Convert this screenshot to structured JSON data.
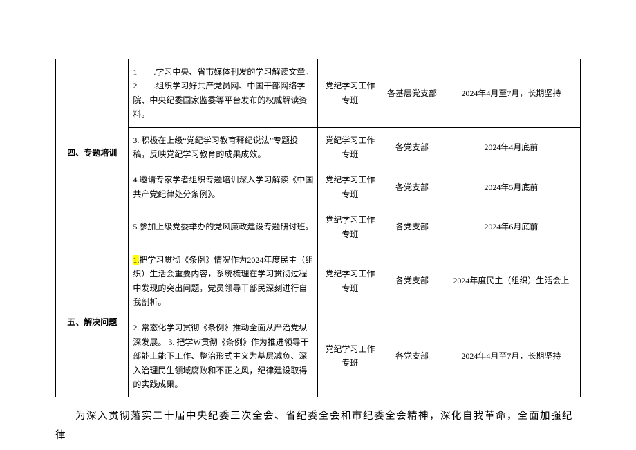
{
  "table": {
    "categories": {
      "cat4": "四、专题培训",
      "cat5": "五、解决问题"
    },
    "rows": [
      {
        "task": "1　　.学习中央、省市媒体刊发的学习解读文章。\n2　　.组织学习好共产党员网、中国干部网络学院、中央纪委国家监委等平台发布的权威解读资料。",
        "resp": "党纪学习工作专班",
        "branch": "各基层党支部",
        "time": "2024年4月至7月，长期坚持"
      },
      {
        "task": "3. 积极在上级“党纪学习教育释纪说法”专题投稿，反映党纪学习教育的成果成效。",
        "resp": "党纪学习工作专班",
        "branch": "各党支部",
        "time": "2024年4月底前"
      },
      {
        "task": "4.邀请专家学者组织专题培训深入学习解读《中国共产党纪律处分条例》。",
        "resp": "党纪学习工作专班",
        "branch": "各党支部",
        "time": "2024年5月底前"
      },
      {
        "task": "5.参加上级党委举办的党风廉政建设专题研讨班。",
        "resp": "党纪学习工作专班",
        "branch": "各党支部",
        "time": "2024年6月底前"
      },
      {
        "task_prefix_hl": "1.",
        "task": "把学习贯彻《条例》情况作为2024年度民主（组织）生活会重要内容，系统梳理在学习贯彻过程中发现的突出问题，党员领导干部民深刻进行自我剖析。",
        "resp": "党纪学习工作专班",
        "branch": "各党支部",
        "time": "2024年度民主（组织）生活会上"
      },
      {
        "task": "2. 常态化学习贯彻《条例》推动全面从严治党纵深发展。\n3. 把学W贯彻《条例》作为推进领导干部能上能下工作、整治形式主义为基层减负、深入治理民生领域腐败和不正之风，纪律建设取得的实践成果。",
        "resp": "党纪学习工作专班",
        "branch": "各党支部",
        "time": "2024年4月至7月，长期坚持"
      }
    ]
  },
  "body_text": "为深入贯彻落实二十届中央纪委三次全会、省纪委全会和市纪委全会精神，深化自我革命，全面加强纪律"
}
